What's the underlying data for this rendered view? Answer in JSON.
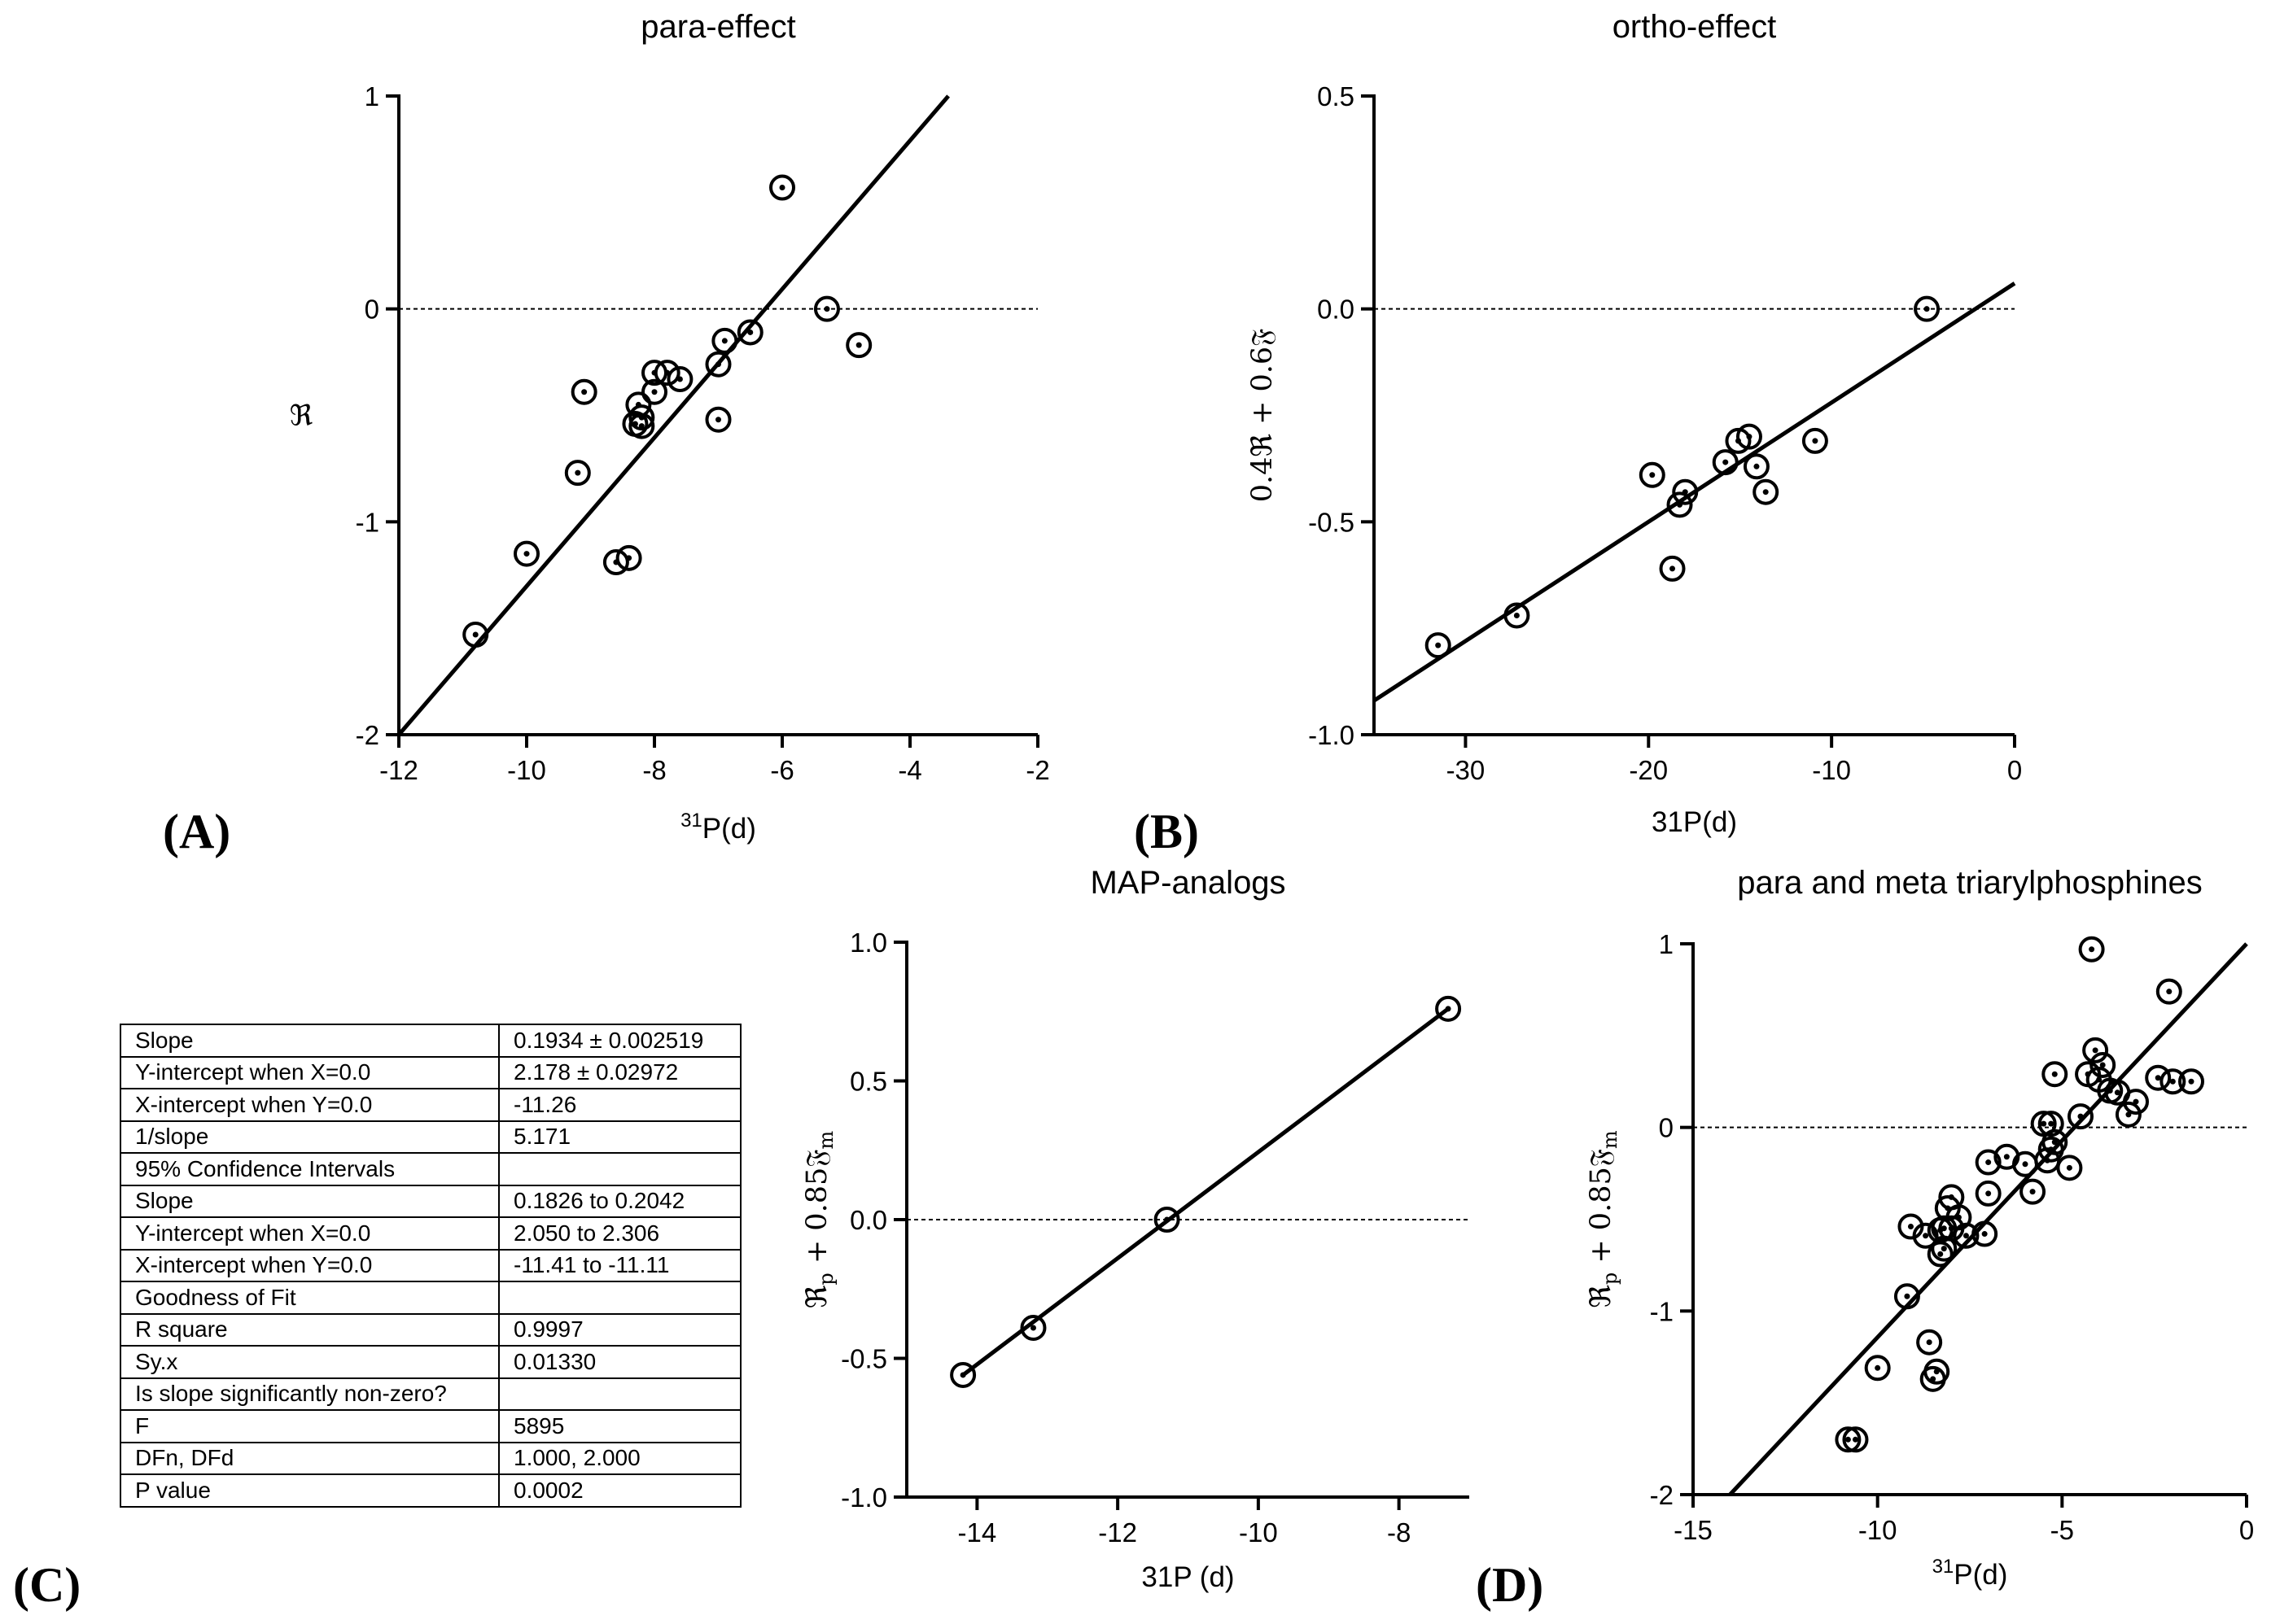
{
  "panels": {
    "A": "(A)",
    "B": "(B)",
    "C": "(C)",
    "D": "(D)"
  },
  "stats_table": [
    [
      "Slope",
      "0.1934 ± 0.002519"
    ],
    [
      "Y-intercept when X=0.0",
      "2.178 ± 0.02972"
    ],
    [
      "X-intercept when Y=0.0",
      "-11.26"
    ],
    [
      "1/slope",
      "5.171"
    ],
    [
      "95% Confidence Intervals",
      ""
    ],
    [
      "Slope",
      "0.1826 to 0.2042"
    ],
    [
      "Y-intercept when X=0.0",
      "2.050 to 2.306"
    ],
    [
      "X-intercept when Y=0.0",
      "-11.41 to -11.11"
    ],
    [
      "Goodness of Fit",
      ""
    ],
    [
      "R square",
      "0.9997"
    ],
    [
      "Sy.x",
      "0.01330"
    ],
    [
      "Is slope significantly non-zero?",
      ""
    ],
    [
      "F",
      "5895"
    ],
    [
      "DFn, DFd",
      "1.000, 2.000"
    ],
    [
      "P value",
      "0.0002"
    ]
  ],
  "chart_data": [
    {
      "id": "A",
      "type": "scatter",
      "title": "para-effect",
      "xlabel": "31P(d)",
      "xlabel_sup": "31",
      "xlabel_main": "P(d)",
      "ylabel": "ℜ",
      "xlim": [
        -12,
        -2
      ],
      "ylim": [
        -2,
        1
      ],
      "xticks": [
        -12,
        -10,
        -8,
        -6,
        -4,
        -2
      ],
      "yticks": [
        -2,
        -1,
        0,
        1
      ],
      "grid": false,
      "zero_line": true,
      "fit": {
        "x": [
          -12,
          -3.4
        ],
        "y": [
          -2,
          1
        ]
      },
      "x": [
        -10.8,
        -10.0,
        -9.2,
        -9.1,
        -8.6,
        -8.4,
        -8.3,
        -8.25,
        -8.2,
        -8.2,
        -8.0,
        -8.0,
        -7.8,
        -7.6,
        -7.0,
        -7.0,
        -6.9,
        -6.5,
        -6.0,
        -5.3,
        -4.8
      ],
      "y": [
        -1.53,
        -1.15,
        -0.77,
        -0.39,
        -1.19,
        -1.17,
        -0.54,
        -0.45,
        -0.51,
        -0.55,
        -0.3,
        -0.39,
        -0.3,
        -0.33,
        -0.52,
        -0.26,
        -0.15,
        -0.11,
        0.57,
        0.0,
        -0.17
      ]
    },
    {
      "id": "B",
      "type": "scatter",
      "title": "ortho-effect",
      "xlabel": "31P(d)",
      "ylabel": "0.4ℜ + 0.6𝔉",
      "xlim": [
        -35,
        0
      ],
      "ylim": [
        -1.0,
        0.5
      ],
      "xticks": [
        -30,
        -20,
        -10,
        0
      ],
      "xtick_labels": [
        "-30",
        "-20",
        "-10",
        "0"
      ],
      "yticks": [
        -1.0,
        -0.5,
        0.0,
        0.5
      ],
      "ytick_labels": [
        "-1.0",
        "-0.5",
        "0.0",
        "0.5"
      ],
      "grid": false,
      "zero_line": true,
      "fit": {
        "x": [
          -35,
          0
        ],
        "y": [
          -0.92,
          0.06
        ]
      },
      "x": [
        -31.5,
        -27.2,
        -19.8,
        -18.7,
        -18.3,
        -18.0,
        -15.8,
        -15.1,
        -14.5,
        -14.1,
        -13.6,
        -10.9,
        -4.8
      ],
      "y": [
        -0.79,
        -0.72,
        -0.39,
        -0.61,
        -0.46,
        -0.43,
        -0.36,
        -0.31,
        -0.3,
        -0.37,
        -0.43,
        -0.31,
        0.0
      ]
    },
    {
      "id": "C",
      "type": "scatter",
      "title": "MAP-analogs",
      "xlabel": "31P (d)",
      "ylabel": "ℜp + 0.85𝔉m",
      "ylabel_parts": [
        "ℜ",
        "p",
        " + 0.85",
        "𝔉",
        "m"
      ],
      "xlim": [
        -15,
        -7
      ],
      "ylim": [
        -1.0,
        1.0
      ],
      "xticks": [
        -14,
        -12,
        -10,
        -8
      ],
      "xtick_labels": [
        "-14",
        "-12",
        "-10",
        "-8"
      ],
      "yticks": [
        -1.0,
        -0.5,
        0.0,
        0.5,
        1.0
      ],
      "ytick_labels": [
        "-1.0",
        "-0.5",
        "0.0",
        "0.5",
        "1.0"
      ],
      "grid": false,
      "zero_line": true,
      "fit": {
        "x": [
          -14.2,
          -7.3
        ],
        "y": [
          -0.56,
          0.76
        ]
      },
      "x": [
        -14.2,
        -13.2,
        -11.3,
        -7.3
      ],
      "y": [
        -0.56,
        -0.39,
        0.0,
        0.76
      ]
    },
    {
      "id": "D",
      "type": "scatter",
      "title": "para and meta triarylphosphines",
      "xlabel": "31P(d)",
      "xlabel_sup": "31",
      "xlabel_main": "P(d)",
      "ylabel": "ℜp + 0.85𝔉m",
      "ylabel_parts": [
        "ℜ",
        "p",
        " + 0.85",
        "𝔉",
        "m"
      ],
      "xlim": [
        -15,
        0
      ],
      "ylim": [
        -2,
        1
      ],
      "xticks": [
        -15,
        -10,
        -5,
        0
      ],
      "xtick_labels": [
        "-15",
        "-10",
        "-5",
        "0"
      ],
      "yticks": [
        -2,
        -1,
        0,
        1
      ],
      "ytick_labels": [
        "-2",
        "-1",
        "0",
        "1"
      ],
      "grid": false,
      "zero_line": true,
      "fit": {
        "x": [
          -14.0,
          0.0
        ],
        "y": [
          -2.0,
          1.0
        ]
      },
      "x": [
        -10.8,
        -10.6,
        -10.0,
        -9.2,
        -9.1,
        -8.7,
        -8.6,
        -8.5,
        -8.4,
        -8.3,
        -8.3,
        -8.2,
        -8.2,
        -8.1,
        -8.0,
        -8.0,
        -7.8,
        -7.6,
        -7.1,
        -7.0,
        -7.0,
        -6.5,
        -6.0,
        -5.8,
        -5.5,
        -5.4,
        -5.3,
        -5.3,
        -5.2,
        -5.2,
        -4.8,
        -4.5,
        -4.3,
        -4.2,
        -4.1,
        -4.0,
        -3.9,
        -3.7,
        -3.5,
        -3.2,
        -3.0,
        -2.4,
        -2.1,
        -2.0,
        -1.5
      ],
      "y": [
        -1.7,
        -1.7,
        -1.31,
        -0.92,
        -0.54,
        -0.59,
        -1.17,
        -1.37,
        -1.33,
        -0.69,
        -0.56,
        -0.66,
        -0.55,
        -0.44,
        -0.38,
        -0.55,
        -0.49,
        -0.59,
        -0.58,
        -0.36,
        -0.19,
        -0.16,
        -0.2,
        -0.35,
        0.02,
        -0.18,
        0.02,
        -0.12,
        -0.08,
        0.29,
        -0.22,
        0.06,
        0.29,
        0.97,
        0.42,
        0.26,
        0.34,
        0.2,
        0.19,
        0.07,
        0.14,
        0.27,
        0.74,
        0.25,
        0.25
      ]
    }
  ]
}
